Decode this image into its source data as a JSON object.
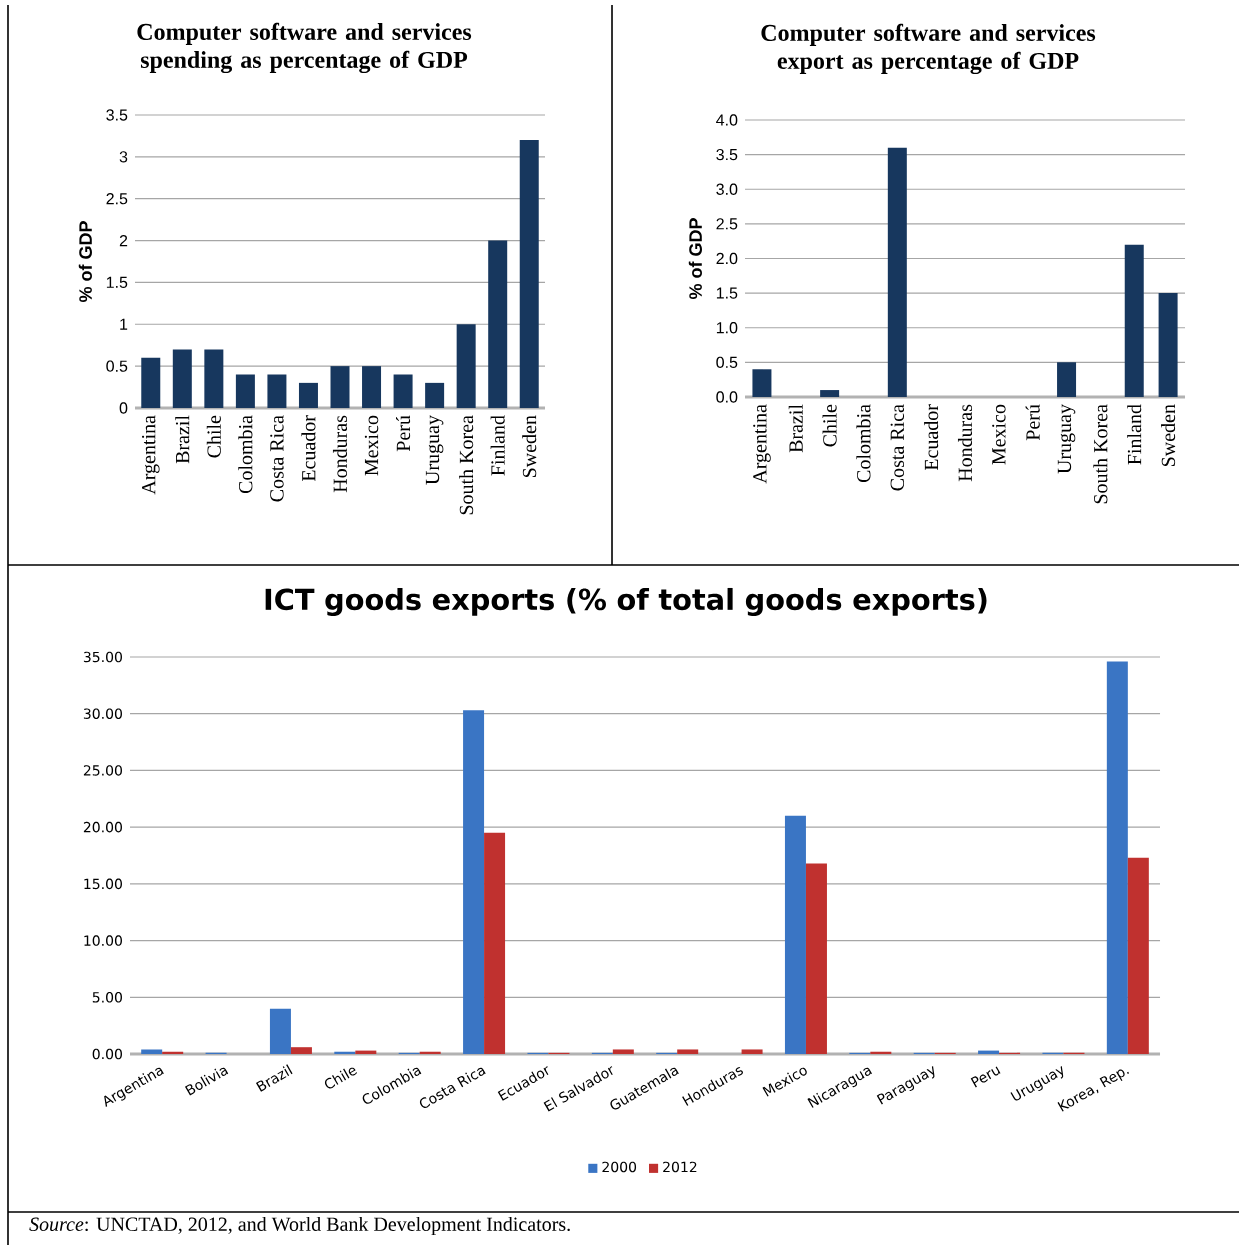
{
  "chart_data": [
    {
      "type": "bar",
      "title": "Computer software and services spending as percentage of GDP",
      "ylabel": "% of GDP",
      "categories": [
        "Argentina",
        "Brazil",
        "Chile",
        "Colombia",
        "Costa Rica",
        "Ecuador",
        "Honduras",
        "Mexico",
        "Perú",
        "Uruguay",
        "South Korea",
        "Finland",
        "Sweden"
      ],
      "series": [
        {
          "color": "#17375e",
          "values": [
            0.6,
            0.7,
            0.7,
            0.4,
            0.4,
            0.3,
            0.5,
            0.5,
            0.4,
            0.3,
            1.0,
            2.0,
            3.2
          ]
        }
      ],
      "ylim": [
        0,
        3.5
      ],
      "yticks": [
        0,
        0.5,
        1,
        1.5,
        2,
        2.5,
        3,
        3.5
      ],
      "grid": "y"
    },
    {
      "type": "bar",
      "title": "Computer software and services export as percentage of GDP",
      "ylabel": "% of GDP",
      "categories": [
        "Argentina",
        "Brazil",
        "Chile",
        "Colombia",
        "Costa Rica",
        "Ecuador",
        "Honduras",
        "Mexico",
        "Perú",
        "Uruguay",
        "South Korea",
        "Finland",
        "Sweden"
      ],
      "series": [
        {
          "color": "#17375e",
          "values": [
            0.4,
            0,
            0.1,
            0,
            3.6,
            0,
            0,
            0,
            0,
            0.5,
            0,
            2.2,
            1.5
          ]
        }
      ],
      "ylim": [
        0,
        4.0
      ],
      "yticks": [
        {
          "value": 0,
          "label": "0.0"
        },
        {
          "value": 0.5,
          "label": "0.5"
        },
        {
          "value": 1,
          "label": "1.0"
        },
        {
          "value": 1.5,
          "label": "1.5"
        },
        {
          "value": 2,
          "label": "2.0"
        },
        {
          "value": 2.5,
          "label": "2.5"
        },
        {
          "value": 3,
          "label": "3.0"
        },
        {
          "value": 3.5,
          "label": "3.5"
        },
        {
          "value": 4,
          "label": "4.0"
        }
      ],
      "grid": "y"
    },
    {
      "type": "bar",
      "title": "ICT goods exports (% of total goods exports)",
      "categories": [
        "Argentina",
        "Bolivia",
        "Brazil",
        "Chile",
        "Colombia",
        "Costa Rica",
        "Ecuador",
        "El Salvador",
        "Guatemala",
        "Honduras",
        "Mexico",
        "Nicaragua",
        "Paraguay",
        "Peru",
        "Uruguay",
        "Korea, Rep."
      ],
      "series": [
        {
          "name": "2000",
          "color": "#3a75c4",
          "values": [
            0.4,
            0.1,
            4.0,
            0.2,
            0.1,
            30.3,
            0.1,
            0.1,
            0.1,
            0.0,
            21.0,
            0.1,
            0.1,
            0.3,
            0.1,
            34.6
          ]
        },
        {
          "name": "2012",
          "color": "#c0312f",
          "values": [
            0.2,
            0.0,
            0.6,
            0.3,
            0.2,
            19.5,
            0.1,
            0.4,
            0.4,
            0.4,
            16.8,
            0.2,
            0.1,
            0.1,
            0.1,
            17.3
          ]
        }
      ],
      "ylim": [
        0,
        35
      ],
      "yticks": [
        {
          "value": 0,
          "label": "0.00"
        },
        {
          "value": 5,
          "label": "5.00"
        },
        {
          "value": 10,
          "label": "10.00"
        },
        {
          "value": 15,
          "label": "15.00"
        },
        {
          "value": 20,
          "label": "20.00"
        },
        {
          "value": 25,
          "label": "25.00"
        },
        {
          "value": 30,
          "label": "30.00"
        },
        {
          "value": 35,
          "label": "35.00"
        }
      ],
      "grid": "y",
      "legend": "bottom",
      "annotations": [
        "*Source*: UNCTAD, 2012, and World Bank Development Indicators."
      ]
    }
  ]
}
